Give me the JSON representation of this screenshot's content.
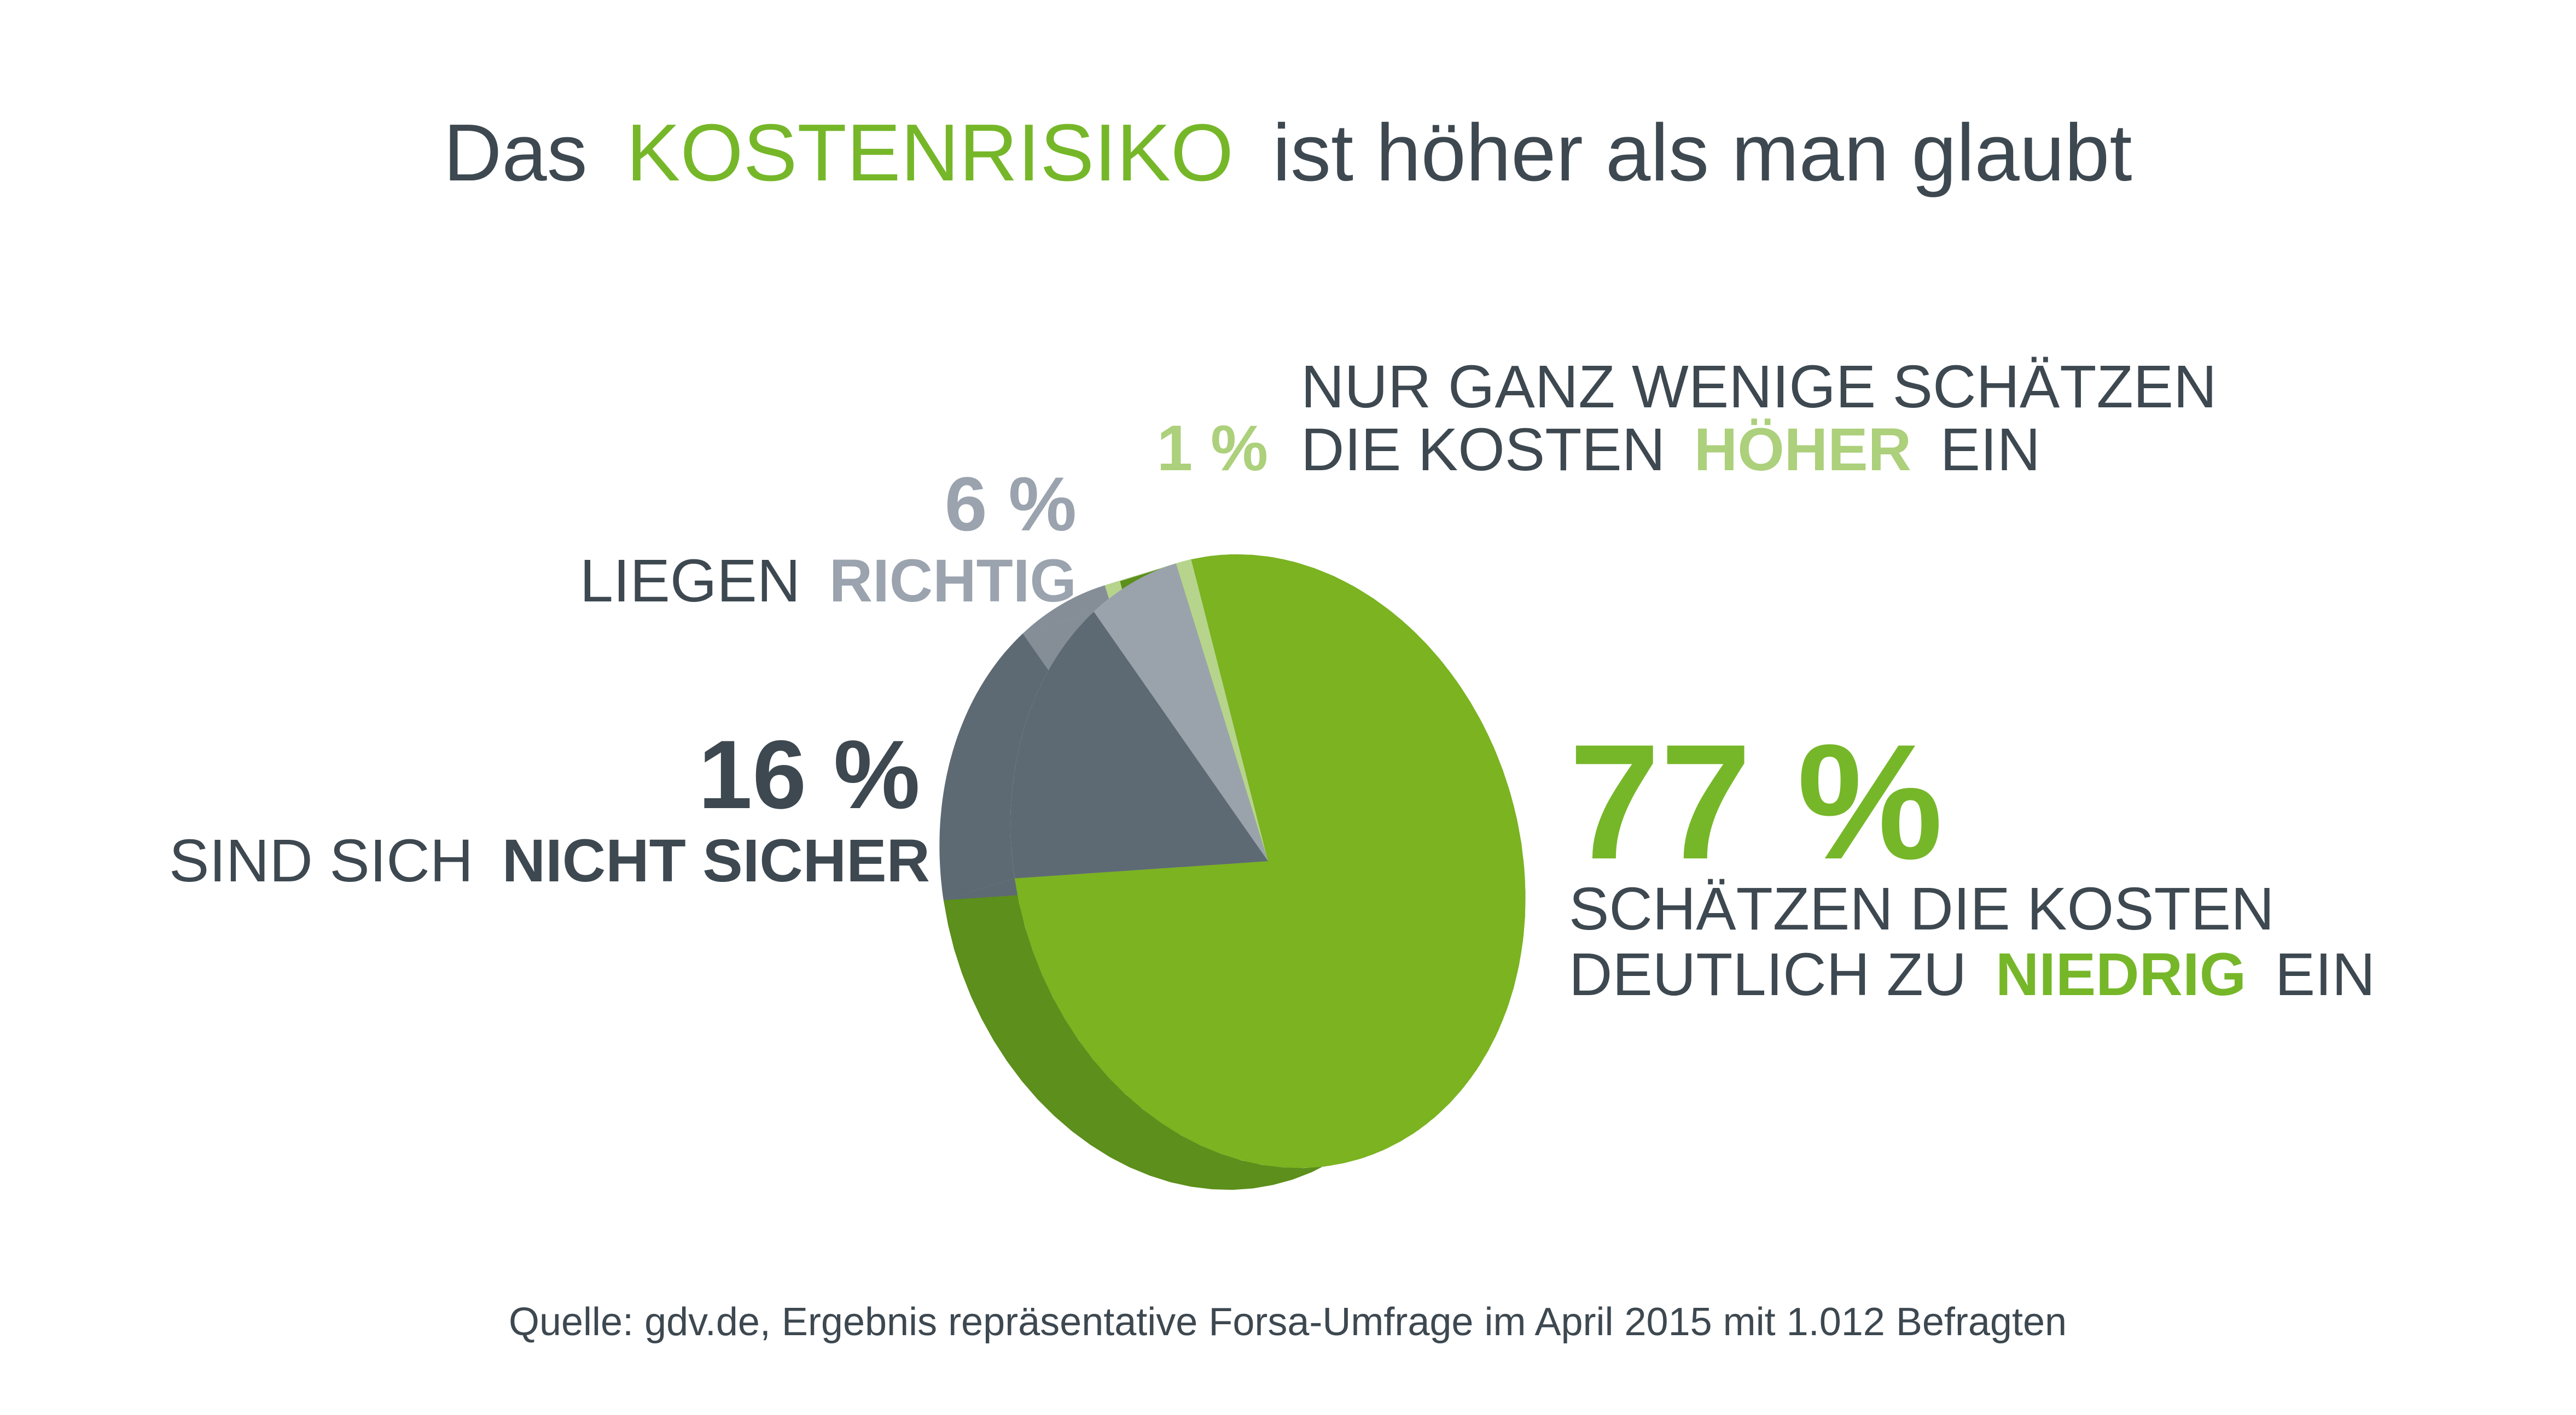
{
  "title": {
    "prefix": "Das",
    "highlight": "KOSTENRISIKO",
    "suffix": "ist höher als man glaubt"
  },
  "colors": {
    "text_dark": "#3d4850",
    "highlight_green": "#76b729",
    "slice_green_top": "#7bb321",
    "slice_green_side": "#5c8f1b",
    "slice_light_green_top": "#b7d48c",
    "slice_slate_top": "#5d6a73",
    "slice_slate_side": "#5d6a73",
    "slice_grey_top": "#9aa3ac",
    "slice_grey_side": "#858e97",
    "label_light_green": "#acd07b",
    "label_grey": "#9aa3ae"
  },
  "chart_data": {
    "type": "pie",
    "style": "3d-tilted",
    "categories": [
      "schätzen die Kosten deutlich zu niedrig ein",
      "sind sich nicht sicher",
      "liegen richtig",
      "schätzen die Kosten höher ein"
    ],
    "values": [
      77,
      16,
      6,
      1
    ],
    "slices": [
      {
        "value": 77,
        "percent_label": "77 %",
        "line1": "SCHÄTZEN DIE KOSTEN",
        "line2_prefix": "DEUTLICH ZU",
        "line2_highlight": "NIEDRIG",
        "line2_suffix": "EIN",
        "color": "#7bb321"
      },
      {
        "value": 16,
        "percent_label": "16 %",
        "line_prefix": "SIND SICH",
        "line_highlight": "NICHT SICHER",
        "color": "#5d6a73"
      },
      {
        "value": 6,
        "percent_label": "6 %",
        "line_prefix": "LIEGEN",
        "line_highlight": "RICHTIG",
        "color": "#9aa3ac"
      },
      {
        "value": 1,
        "percent_label": "1 %",
        "line1": "NUR GANZ WENIGE SCHÄTZEN",
        "line2_prefix": "DIE KOSTEN",
        "line2_highlight": "HÖHER",
        "line2_suffix": "EIN",
        "color": "#b7d48c"
      }
    ]
  },
  "source": "Quelle: gdv.de, Ergebnis repräsentative Forsa-Umfrage im April 2015 mit 1.012 Befragten"
}
